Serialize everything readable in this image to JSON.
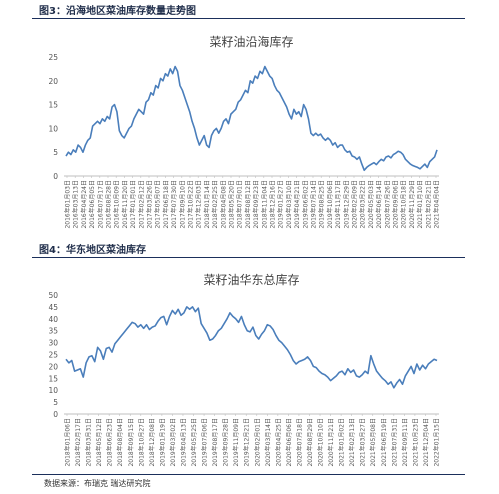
{
  "figure3": {
    "caption": "图3：沿海地区菜油库存数量走势图"
  },
  "figure4": {
    "caption": "图4：华东地区菜油库存"
  },
  "source": "数据来源：布瑞克  瑞达研究院",
  "colors": {
    "line": "#4a7ebb",
    "axis": "#bfbfbf",
    "title": "#444444",
    "caption": "#1f2d4a"
  },
  "chart_data": [
    {
      "type": "line",
      "title": "菜籽油沿海库存",
      "xlabel": "",
      "ylabel": "",
      "ylim": [
        0,
        25
      ],
      "yticks": [
        0,
        5,
        10,
        15,
        20,
        25
      ],
      "grid": false,
      "legend": "none",
      "x_ticks": [
        "2016年01月03日",
        "2016年03月13日",
        "2016年04月24日",
        "2016年06月05日",
        "2016年07月17日",
        "2016年08月28日",
        "2016年10月09日",
        "2016年11月20日",
        "2017年01月01日",
        "2017年02月12日",
        "2017年03月26日",
        "2017年05月07日",
        "2017年06月18日",
        "2017年07月30日",
        "2017年09月10日",
        "2017年10月22日",
        "2017年12月03日",
        "2018年01月14日",
        "2018年02月25日",
        "2018年04月08日",
        "2018年05月20日",
        "2018年07月01日",
        "2018年08月12日",
        "2018年09月23日",
        "2018年11月04日",
        "2018年12月16日",
        "2019年01月27日",
        "2019年03月10日",
        "2019年04月21日",
        "2019年06月02日",
        "2019年07月14日",
        "2019年08月25日",
        "2019年10月06日",
        "2019年11月17日",
        "2019年12月29日",
        "2020年02月09日",
        "2020年03月22日",
        "2020年05月03日",
        "2020年06月14日",
        "2020年07月26日",
        "2020年09月06日",
        "2020年10月18日",
        "2020年11月29日",
        "2021年01月10日",
        "2021年02月21日",
        "2021年04月04日"
      ],
      "series": [
        {
          "values": [
            4.2,
            5.0,
            4.5,
            5.5,
            5.0,
            6.5,
            6.0,
            5.0,
            6.5,
            7.5,
            8.0,
            10.5,
            11.0,
            11.5,
            11.0,
            12.0,
            11.5,
            12.5,
            12.0,
            14.5,
            15.0,
            13.5,
            9.5,
            8.5,
            8.0,
            9.0,
            10.0,
            10.5,
            12.0,
            13.0,
            14.0,
            13.5,
            13.0,
            15.5,
            16.0,
            17.5,
            17.0,
            19.0,
            18.5,
            20.5,
            20.0,
            21.5,
            21.0,
            22.5,
            21.5,
            23.0,
            22.0,
            19.0,
            18.0,
            16.5,
            15.0,
            13.5,
            11.5,
            10.0,
            8.0,
            6.5,
            7.5,
            8.5,
            6.5,
            6.0,
            8.5,
            9.5,
            10.0,
            9.0,
            10.0,
            11.5,
            12.0,
            11.0,
            13.0,
            13.5,
            14.0,
            15.5,
            16.0,
            17.0,
            18.0,
            17.5,
            20.0,
            19.5,
            21.0,
            20.5,
            22.0,
            21.5,
            23.0,
            22.0,
            21.0,
            20.5,
            19.0,
            18.0,
            17.5,
            16.5,
            15.5,
            14.5,
            13.0,
            12.0,
            14.0,
            13.0,
            13.5,
            12.5,
            15.0,
            14.0,
            12.0,
            9.0,
            8.5,
            9.0,
            8.5,
            8.8,
            8.0,
            7.5,
            8.0,
            7.5,
            6.5,
            7.0,
            6.0,
            6.5,
            6.5,
            5.5,
            5.0,
            5.2,
            4.2,
            4.0,
            3.5,
            4.0,
            2.5,
            1.2,
            1.8,
            2.2,
            2.5,
            2.8,
            2.4,
            3.0,
            3.5,
            3.2,
            4.0,
            4.2,
            3.8,
            4.5,
            4.8,
            5.2,
            5.0,
            4.5,
            3.5,
            3.0,
            2.5,
            2.2,
            2.0,
            1.8,
            1.5,
            2.0,
            2.5,
            1.8,
            3.0,
            3.5,
            4.0,
            5.5
          ]
        }
      ]
    },
    {
      "type": "line",
      "title": "菜籽油华东总库存",
      "xlabel": "",
      "ylabel": "",
      "ylim": [
        0,
        50
      ],
      "yticks": [
        0,
        5,
        10,
        15,
        20,
        25,
        30,
        35,
        40,
        45,
        50
      ],
      "grid": false,
      "legend": "none",
      "x_ticks": [
        "2018年01月06日",
        "2018年02月17日",
        "2018年03月31日",
        "2018年05月12日",
        "2018年06月23日",
        "2018年08月04日",
        "2018年09月15日",
        "2018年10月27日",
        "2018年12月08日",
        "2019年01月19日",
        "2019年03月02日",
        "2019年04月13日",
        "2019年05月25日",
        "2019年07月06日",
        "2019年08月17日",
        "2019年09月28日",
        "2019年11月09日",
        "2019年12月21日",
        "2020年02月01日",
        "2020年03月14日",
        "2020年04月25日",
        "2020年06月06日",
        "2020年07月18日",
        "2020年08月29日",
        "2020年10月10日",
        "2020年11月21日",
        "2021年01月02日",
        "2021年02月13日",
        "2021年03月27日",
        "2021年05月08日",
        "2021年06月19日",
        "2021年07月31日",
        "2021年09月11日",
        "2021年10月23日",
        "2021年12月04日",
        "2022年01月15日"
      ],
      "series": [
        {
          "values": [
            23.0,
            21.5,
            22.5,
            18.0,
            18.5,
            19.0,
            15.5,
            21.5,
            24.0,
            24.5,
            22.0,
            28.0,
            26.5,
            23.0,
            27.5,
            28.0,
            26.0,
            29.5,
            31.0,
            32.5,
            34.0,
            35.5,
            37.0,
            38.5,
            38.0,
            36.5,
            37.5,
            36.0,
            37.5,
            35.5,
            36.5,
            37.0,
            39.0,
            40.5,
            41.0,
            37.5,
            41.0,
            43.5,
            42.0,
            44.0,
            41.5,
            42.5,
            45.0,
            44.0,
            45.0,
            43.0,
            44.5,
            38.0,
            36.0,
            34.0,
            31.0,
            31.5,
            33.0,
            35.0,
            36.0,
            38.0,
            40.0,
            42.5,
            41.0,
            40.0,
            38.5,
            41.0,
            37.5,
            35.0,
            34.5,
            36.5,
            33.0,
            31.5,
            33.5,
            35.0,
            37.5,
            37.0,
            35.5,
            33.0,
            31.0,
            30.0,
            28.5,
            27.0,
            25.0,
            22.5,
            21.0,
            22.0,
            22.5,
            23.0,
            24.0,
            22.5,
            20.0,
            19.5,
            18.0,
            17.0,
            16.5,
            15.5,
            14.0,
            15.0,
            16.0,
            17.5,
            18.0,
            16.5,
            19.0,
            17.5,
            18.5,
            16.0,
            15.5,
            16.5,
            18.0,
            17.0,
            24.5,
            21.0,
            18.0,
            16.5,
            15.0,
            14.0,
            12.5,
            13.5,
            11.0,
            13.0,
            14.5,
            12.5,
            16.0,
            18.0,
            20.0,
            17.0,
            21.0,
            18.5,
            20.5,
            19.0,
            21.0,
            22.0,
            23.0,
            22.5
          ]
        }
      ]
    }
  ]
}
